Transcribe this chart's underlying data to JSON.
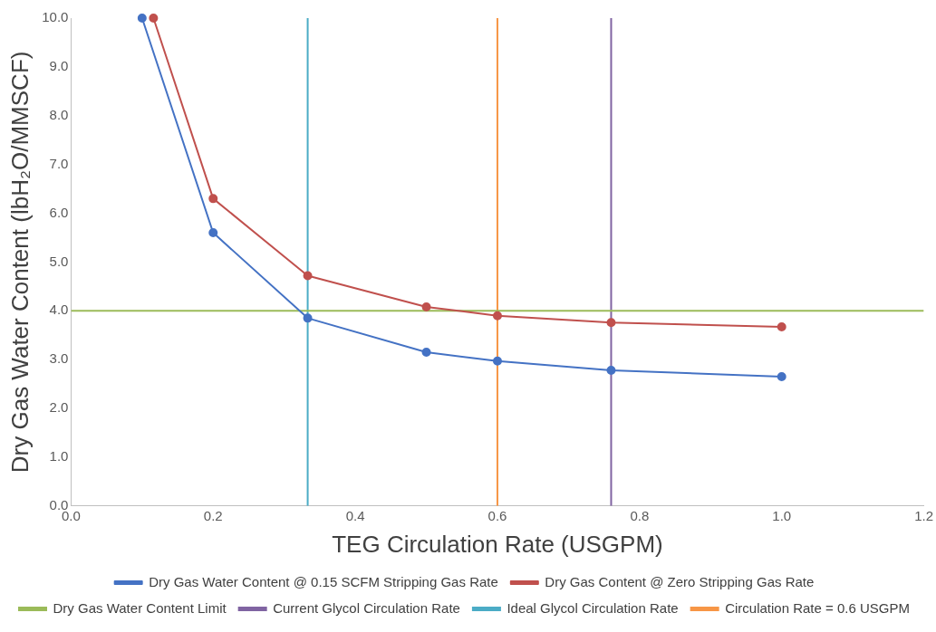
{
  "chart_data": {
    "type": "line",
    "xlabel": "TEG Circulation Rate (USGPM)",
    "ylabel": "Dry Gas Water Content (lbH₂O/MMSCF)",
    "series": [
      {
        "name": "Dry Gas Water Content @ 0.15 SCFM Stripping Gas Rate",
        "color": "#4472c4",
        "x": [
          0.1,
          0.2,
          0.333,
          0.5,
          0.6,
          0.76,
          1.0
        ],
        "values": [
          10.0,
          5.6,
          3.85,
          3.15,
          2.97,
          2.78,
          2.65
        ]
      },
      {
        "name": "Dry Gas Content @ Zero Stripping Gas Rate",
        "color": "#c0504d",
        "x": [
          0.116,
          0.2,
          0.333,
          0.5,
          0.6,
          0.76,
          1.0
        ],
        "values": [
          10.0,
          6.3,
          4.72,
          4.08,
          3.9,
          3.76,
          3.67
        ]
      }
    ],
    "ref_lines": [
      {
        "axis": "y",
        "value": 4.0,
        "label": "Dry Gas Water Content Limit",
        "color": "#9bbb59"
      },
      {
        "axis": "x",
        "value": 0.76,
        "label": "Current Glycol Circulation Rate",
        "color": "#8064a2"
      },
      {
        "axis": "x",
        "value": 0.333,
        "label": "Ideal Glycol Circulation Rate",
        "color": "#4bacc6"
      },
      {
        "axis": "x",
        "value": 0.6,
        "label": "Circulation Rate = 0.6 USGPM",
        "color": "#f79646"
      }
    ],
    "xlim": [
      0,
      1.2
    ],
    "xticks": [
      {
        "value": 0,
        "label": "0.0"
      },
      {
        "value": 0.2,
        "label": "0.2"
      },
      {
        "value": 0.4,
        "label": "0.4"
      },
      {
        "value": 0.6,
        "label": "0.6"
      },
      {
        "value": 0.8,
        "label": "0.8"
      },
      {
        "value": 1,
        "label": "1.0"
      },
      {
        "value": 1.2,
        "label": "1.2"
      }
    ],
    "ylim": [
      0,
      10
    ],
    "yticks": [
      {
        "value": 0,
        "label": "0.0"
      },
      {
        "value": 1,
        "label": "1.0"
      },
      {
        "value": 2,
        "label": "2.0"
      },
      {
        "value": 3,
        "label": "3.0"
      },
      {
        "value": 4,
        "label": "4.0"
      },
      {
        "value": 5,
        "label": "5.0"
      },
      {
        "value": 6,
        "label": "6.0"
      },
      {
        "value": 7,
        "label": "7.0"
      },
      {
        "value": 8,
        "label": "8.0"
      },
      {
        "value": 9,
        "label": "9.0"
      },
      {
        "value": 10,
        "label": "10.0"
      }
    ],
    "grid": false,
    "legend": "bottom",
    "marker": "circle"
  }
}
